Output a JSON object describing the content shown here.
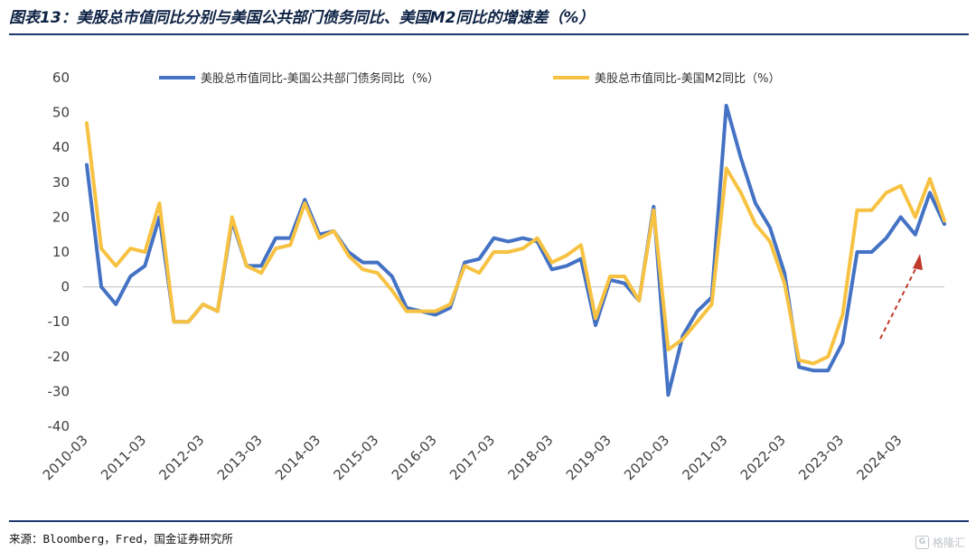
{
  "page": {
    "title": "图表13：美股总市值同比分别与美国公共部门债务同比、美国M2同比的增速差（%）",
    "source": "来源：Bloomberg，Fred，国金证券研究所",
    "watermark": "格隆汇"
  },
  "chart_data": {
    "type": "line",
    "title": "图表13：美股总市值同比分别与美国公共部门债务同比、美国M2同比的增速差（%）",
    "xlabel": "",
    "ylabel": "",
    "ylim": [
      -40,
      60
    ],
    "y_ticks": [
      60,
      50,
      40,
      30,
      20,
      10,
      0,
      -10,
      -20,
      -30,
      -40
    ],
    "x_tick_labels": [
      "2010-03",
      "2011-03",
      "2012-03",
      "2013-03",
      "2014-03",
      "2015-03",
      "2016-03",
      "2017-03",
      "2018-03",
      "2019-03",
      "2020-03",
      "2021-03",
      "2022-03",
      "2023-03",
      "2024-03"
    ],
    "x_start": "2010-03",
    "frequency": "quarterly",
    "grid": false,
    "legend_position": "top",
    "series": [
      {
        "name": "美股总市值同比-美国公共部门债务同比（%）",
        "color": "#4472c4",
        "values": [
          35,
          0,
          -5,
          3,
          6,
          20,
          -10,
          -10,
          -5,
          -7,
          19,
          6,
          6,
          14,
          14,
          25,
          15,
          16,
          10,
          7,
          7,
          3,
          -6,
          -7,
          -8,
          -6,
          7,
          8,
          14,
          13,
          14,
          13,
          5,
          6,
          8,
          -11,
          2,
          1,
          -4,
          23,
          -31,
          -14,
          -7,
          -3,
          52,
          37,
          24,
          17,
          4,
          -23,
          -24,
          -24,
          -16,
          10,
          10,
          14,
          20,
          15,
          27,
          18
        ]
      },
      {
        "name": "美股总市值同比-美国M2同比（%）",
        "color": "#f7c242",
        "values": [
          47,
          11,
          6,
          11,
          10,
          24,
          -10,
          -10,
          -5,
          -7,
          20,
          6,
          4,
          11,
          12,
          24,
          14,
          16,
          9,
          5,
          4,
          -1,
          -7,
          -7,
          -7,
          -5,
          6,
          4,
          10,
          10,
          11,
          14,
          7,
          9,
          12,
          -9,
          3,
          3,
          -4,
          22,
          -18,
          -15,
          -10,
          -5,
          34,
          27,
          18,
          13,
          1,
          -21,
          -22,
          -20,
          -8,
          22,
          22,
          27,
          29,
          20,
          31,
          19
        ]
      }
    ],
    "annotation": {
      "type": "arrow",
      "color": "#c0392b",
      "style": "dashed"
    }
  }
}
